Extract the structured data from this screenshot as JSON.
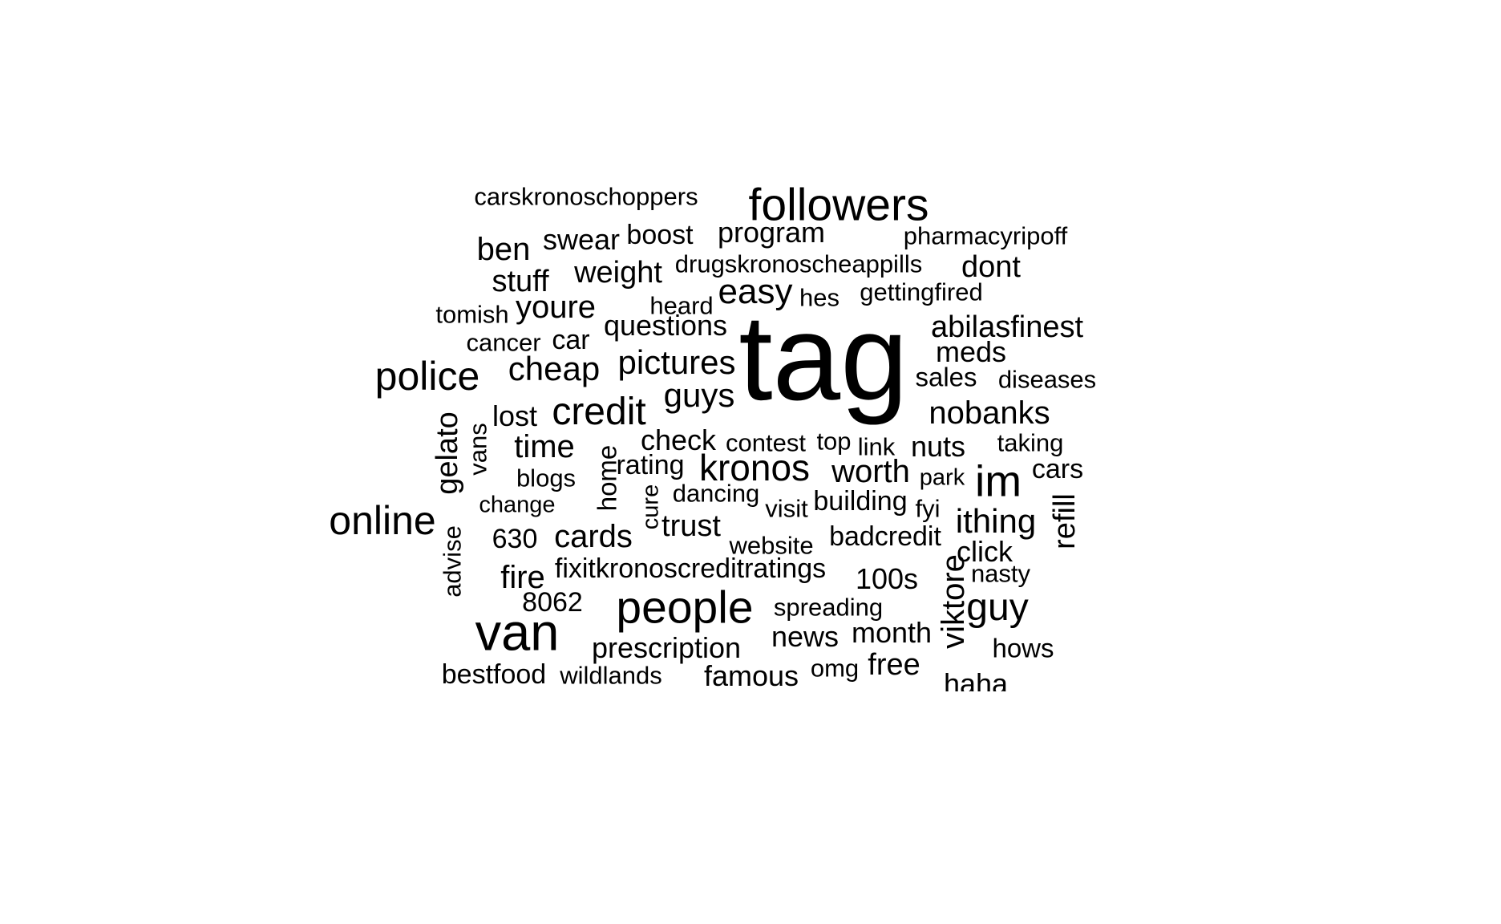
{
  "style": {
    "text_color": "#000000",
    "background": "#ffffff"
  },
  "words": [
    {
      "text": "tag"
    },
    {
      "text": "followers"
    },
    {
      "text": "carskronoschoppers"
    },
    {
      "text": "program"
    },
    {
      "text": "pharmacyripoff"
    },
    {
      "text": "ben"
    },
    {
      "text": "swear"
    },
    {
      "text": "boost"
    },
    {
      "text": "drugskronoscheappills"
    },
    {
      "text": "dont"
    },
    {
      "text": "stuff"
    },
    {
      "text": "weight"
    },
    {
      "text": "easy"
    },
    {
      "text": "hes"
    },
    {
      "text": "gettingfired"
    },
    {
      "text": "tomish"
    },
    {
      "text": "youre"
    },
    {
      "text": "heard"
    },
    {
      "text": "cancer"
    },
    {
      "text": "car"
    },
    {
      "text": "questions"
    },
    {
      "text": "abilasfinest"
    },
    {
      "text": "meds"
    },
    {
      "text": "police"
    },
    {
      "text": "cheap"
    },
    {
      "text": "pictures"
    },
    {
      "text": "sales"
    },
    {
      "text": "diseases"
    },
    {
      "text": "guys"
    },
    {
      "text": "lost"
    },
    {
      "text": "credit"
    },
    {
      "text": "nobanks"
    },
    {
      "text": "gelato"
    },
    {
      "text": "vans"
    },
    {
      "text": "time"
    },
    {
      "text": "check"
    },
    {
      "text": "contest"
    },
    {
      "text": "top"
    },
    {
      "text": "link"
    },
    {
      "text": "nuts"
    },
    {
      "text": "taking"
    },
    {
      "text": "home"
    },
    {
      "text": "rating"
    },
    {
      "text": "kronos"
    },
    {
      "text": "worth"
    },
    {
      "text": "im"
    },
    {
      "text": "cars"
    },
    {
      "text": "blogs"
    },
    {
      "text": "park"
    },
    {
      "text": "change"
    },
    {
      "text": "cure"
    },
    {
      "text": "dancing"
    },
    {
      "text": "visit"
    },
    {
      "text": "building"
    },
    {
      "text": "fyi"
    },
    {
      "text": "refill"
    },
    {
      "text": "online"
    },
    {
      "text": "ithing"
    },
    {
      "text": "advise"
    },
    {
      "text": "630"
    },
    {
      "text": "cards"
    },
    {
      "text": "trust"
    },
    {
      "text": "website"
    },
    {
      "text": "badcredit"
    },
    {
      "text": "click"
    },
    {
      "text": "fire"
    },
    {
      "text": "fixitkronoscreditratings"
    },
    {
      "text": "100s"
    },
    {
      "text": "nasty"
    },
    {
      "text": "viktore"
    },
    {
      "text": "8062"
    },
    {
      "text": "people"
    },
    {
      "text": "spreading"
    },
    {
      "text": "guy"
    },
    {
      "text": "van"
    },
    {
      "text": "news"
    },
    {
      "text": "month"
    },
    {
      "text": "prescription"
    },
    {
      "text": "hows"
    },
    {
      "text": "bestfood"
    },
    {
      "text": "wildlands"
    },
    {
      "text": "famous"
    },
    {
      "text": "omg"
    },
    {
      "text": "free"
    },
    {
      "text": "haha"
    }
  ]
}
